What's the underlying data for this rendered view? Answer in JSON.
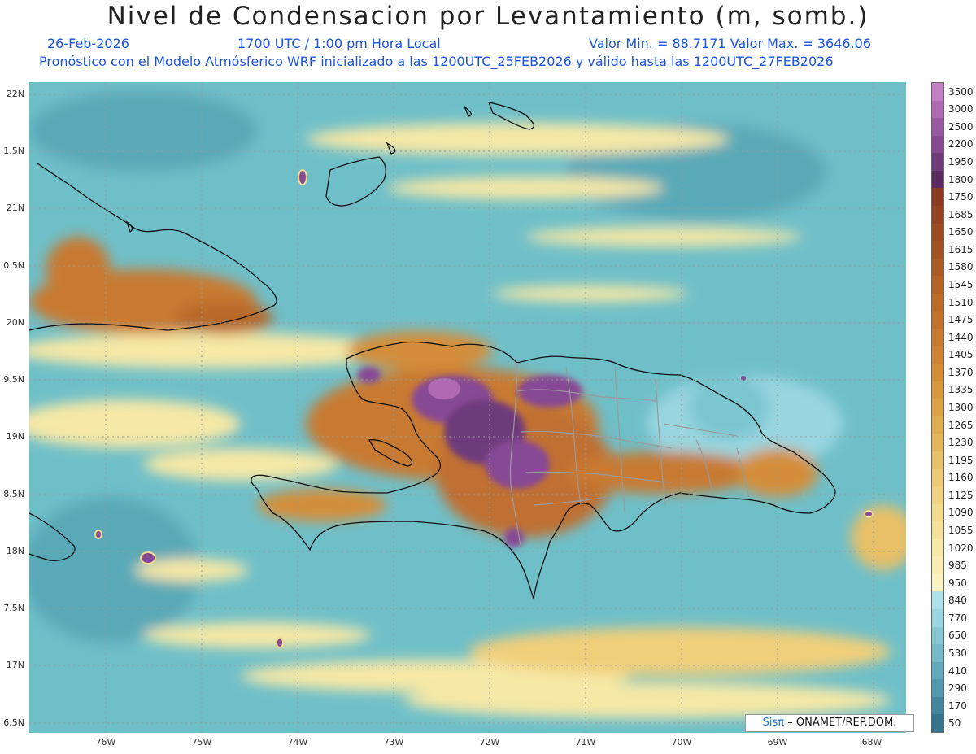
{
  "header": {
    "title": "Nivel de Condensacion por Levantamiento (m, somb.)",
    "date": "26-Feb-2026",
    "time": "1700 UTC / 1:00 pm Hora Local",
    "minmax": "Valor Min. = 88.7171  Valor Max. = 3646.06",
    "forecast": "Pronóstico con el Modelo Atmósferico WRF inicializado a las 1200UTC_25FEB2026 y válido hasta las  1200UTC_27FEB2026",
    "text_color": "#1c54e0"
  },
  "map": {
    "lat_labels": [
      "22N",
      "1.5N",
      "21N",
      "0.5N",
      "20N",
      "9.5N",
      "19N",
      "8.5N",
      "18N",
      "7.5N",
      "17N",
      "6.5N"
    ],
    "lon_labels": [
      "76W",
      "75W",
      "74W",
      "73W",
      "72W",
      "71W",
      "70W",
      "69W",
      "68W"
    ],
    "land_color": "#c9843c",
    "sea_color": "#6fbfc9"
  },
  "colorbar": {
    "labels": [
      "3500",
      "3000",
      "2500",
      "2200",
      "1950",
      "1800",
      "1750",
      "1685",
      "1650",
      "1615",
      "1580",
      "1545",
      "1510",
      "1475",
      "1440",
      "1405",
      "1370",
      "1335",
      "1300",
      "1265",
      "1230",
      "1195",
      "1160",
      "1125",
      "1090",
      "1055",
      "1020",
      "985",
      "950",
      "840",
      "770",
      "650",
      "530",
      "410",
      "290",
      "170",
      "50"
    ],
    "colors": [
      "#c47ec4",
      "#b06ab4",
      "#9a58a4",
      "#864a94",
      "#6e3a7a",
      "#5a2a5e",
      "#8a3a20",
      "#94421f",
      "#9c4a20",
      "#a45222",
      "#ac5a24",
      "#b46226",
      "#bc6a28",
      "#c2722c",
      "#c87a30",
      "#ce8434",
      "#d48e3a",
      "#d89840",
      "#dca248",
      "#e0ac52",
      "#e4b65c",
      "#e8c068",
      "#ecca76",
      "#efd282",
      "#f2da8e",
      "#f4e29a",
      "#f6e8a6",
      "#f8eeb2",
      "#faf2c0",
      "#aee2ea",
      "#9ad6e0",
      "#86c8d4",
      "#74bac8",
      "#62aabc",
      "#5298ae",
      "#42869e",
      "#34748c"
    ]
  },
  "credit": {
    "sis": "Sisπ",
    "rest": "– ONAMET/REP.DOM."
  }
}
